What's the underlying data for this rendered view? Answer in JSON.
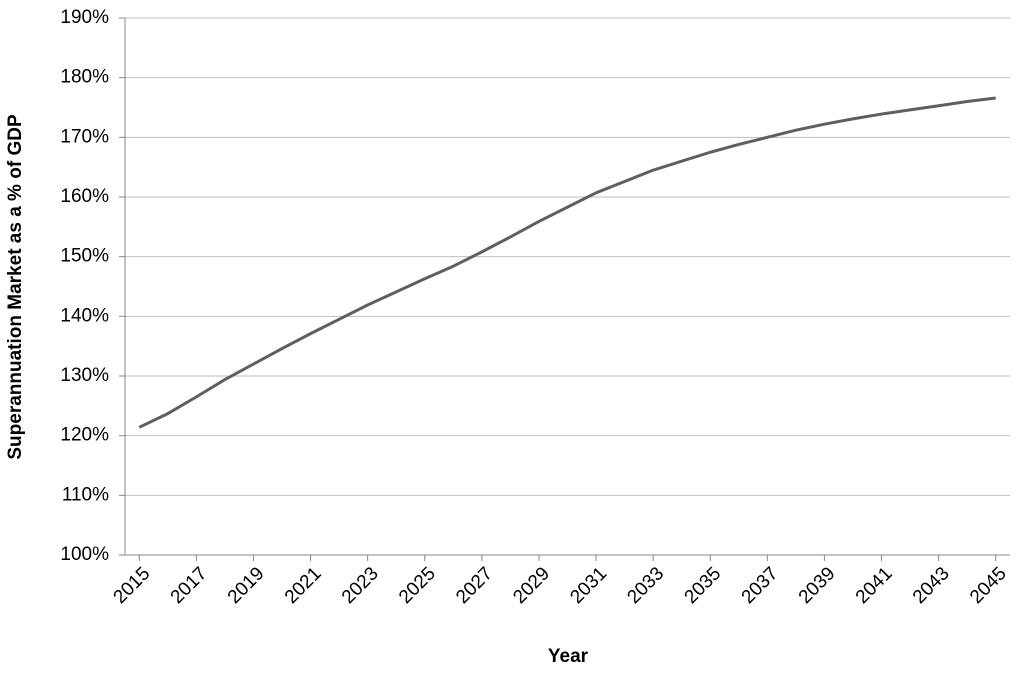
{
  "chart_data": {
    "type": "line",
    "x_label": "Year",
    "y_label": "Superannuation Market as a % of GDP",
    "x": [
      2015,
      2016,
      2017,
      2018,
      2019,
      2020,
      2021,
      2022,
      2023,
      2024,
      2025,
      2026,
      2027,
      2028,
      2029,
      2030,
      2031,
      2032,
      2033,
      2034,
      2035,
      2036,
      2037,
      2038,
      2039,
      2040,
      2041,
      2042,
      2043,
      2044,
      2045
    ],
    "values": [
      121.4,
      123.7,
      126.5,
      129.4,
      132.0,
      134.6,
      137.1,
      139.5,
      141.9,
      144.1,
      146.3,
      148.4,
      150.8,
      153.3,
      155.9,
      158.3,
      160.7,
      162.6,
      164.5,
      166.0,
      167.5,
      168.8,
      170.0,
      171.2,
      172.2,
      173.1,
      173.9,
      174.6,
      175.3,
      176.0,
      176.6
    ],
    "color": "#5f5f5f",
    "xlim": [
      2014.5,
      2045.5
    ],
    "xticks": [
      2015,
      2017,
      2019,
      2021,
      2023,
      2025,
      2027,
      2029,
      2031,
      2033,
      2035,
      2037,
      2039,
      2041,
      2043,
      2045
    ],
    "ylim": [
      100,
      190
    ],
    "yticks": [
      {
        "value": 100,
        "label": "100%"
      },
      {
        "value": 110,
        "label": "110%"
      },
      {
        "value": 120,
        "label": "120%"
      },
      {
        "value": 130,
        "label": "130%"
      },
      {
        "value": 140,
        "label": "140%"
      },
      {
        "value": 150,
        "label": "150%"
      },
      {
        "value": 160,
        "label": "160%"
      },
      {
        "value": 170,
        "label": "170%"
      },
      {
        "value": 180,
        "label": "180%"
      },
      {
        "value": 190,
        "label": "190%"
      }
    ],
    "grid": true
  }
}
